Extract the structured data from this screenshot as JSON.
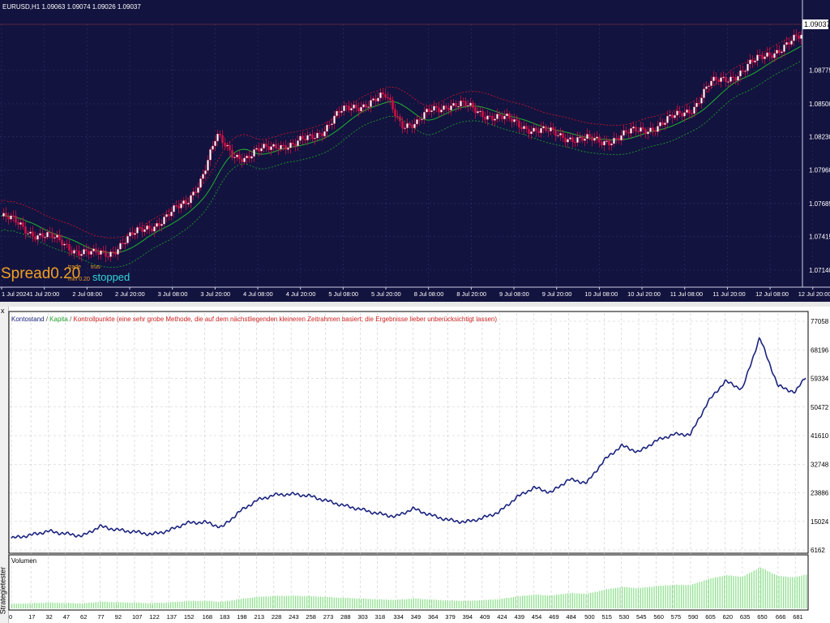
{
  "price_chart": {
    "symbol_info": "EURUSD,H1  1.09063 1.09074 1.09026 1.09037",
    "current_price": "1.09037",
    "y_axis_ticks": [
      "1.08775",
      "1.08500",
      "1.08230",
      "1.07960",
      "1.07685",
      "1.07415",
      "1.07140"
    ],
    "x_axis_ticks": [
      "1 Jul 2024",
      "1 Jul 20:00",
      "2 Jul 08:00",
      "2 Jul 20:00",
      "3 Jul 08:00",
      "3 Jul 20:00",
      "4 Jul 08:00",
      "4 Jul 20:00",
      "5 Jul 08:00",
      "5 Jul 20:00",
      "8 Jul 08:00",
      "8 Jul 20:00",
      "9 Jul 08:00",
      "9 Jul 20:00",
      "10 Jul 08:00",
      "10 Jul 20:00",
      "11 Jul 08:00",
      "11 Jul 20:00",
      "12 Jul 08:00",
      "12 Jul 20:00"
    ],
    "spread_label": "Spread0.20",
    "status_label": "stopped",
    "small_labels": [
      "trade",
      "min 0.20",
      "trus"
    ],
    "colors": {
      "background": "#13133f",
      "bull": "#ffffff",
      "bear": "#cc1144",
      "ma": "#22c02e",
      "upper_band": "#c0142a",
      "lower_band": "#1a9a2a",
      "spread": "#f0a020",
      "status": "#2fd8d8"
    }
  },
  "tester": {
    "panel_label": "Strategietester",
    "close_glyph": "x",
    "legend": {
      "balance": "Kontostand",
      "sep1": " / ",
      "equity": "Kapita",
      "sep2": " / ",
      "checkpoints": "Kontrollpunkte (eine sehr grobe Methode, die auf dem nächstliegenden kleineren Zeitrahmen basiert; die Ergebnisse lieber unberücksichtigt lassen)"
    },
    "y_axis_ticks": [
      "77058",
      "68196",
      "59334",
      "50472",
      "41610",
      "32748",
      "23886",
      "15024",
      "6162"
    ],
    "volume_label": "Volumen",
    "x_axis_ticks": [
      "0",
      "17",
      "32",
      "47",
      "62",
      "77",
      "92",
      "107",
      "122",
      "137",
      "152",
      "168",
      "183",
      "198",
      "213",
      "228",
      "243",
      "258",
      "273",
      "288",
      "303",
      "318",
      "334",
      "349",
      "364",
      "379",
      "394",
      "409",
      "424",
      "439",
      "454",
      "469",
      "484",
      "500",
      "515",
      "530",
      "545",
      "560",
      "575",
      "590",
      "605",
      "620",
      "635",
      "650",
      "666",
      "681"
    ],
    "colors": {
      "balance": "#1a237e",
      "equity": "#22a02e",
      "checkpoints": "#cc2222",
      "volume": "#90e090",
      "grid": "#c8c8c8"
    }
  },
  "chart_data": [
    {
      "type": "line",
      "title": "EURUSD,H1",
      "series": [
        {
          "name": "EURUSD",
          "values": [
            1.0758,
            1.0752,
            1.0745,
            1.0741,
            1.0736,
            1.073,
            1.0726,
            1.0728,
            1.0738,
            1.0745,
            1.0752,
            1.076,
            1.0768,
            1.079,
            1.0822,
            1.081,
            1.0806,
            1.0812,
            1.0818,
            1.0815,
            1.0822,
            1.083,
            1.0842,
            1.0848,
            1.0852,
            1.0855,
            1.0835,
            1.0833,
            1.0845,
            1.085,
            1.0848,
            1.0844,
            1.084,
            1.0836,
            1.0832,
            1.0828,
            1.0825,
            1.0823,
            1.082,
            1.0819,
            1.0823,
            1.0826,
            1.083,
            1.0834,
            1.084,
            1.0848,
            1.0865,
            1.087,
            1.0876,
            1.0884,
            1.0892,
            1.0898,
            1.0904
          ]
        }
      ],
      "ylim": [
        1.07,
        1.0915
      ]
    },
    {
      "type": "line",
      "title": "",
      "x": [
        0,
        17,
        32,
        47,
        62,
        77,
        92,
        107,
        122,
        137,
        152,
        168,
        183,
        198,
        213,
        228,
        243,
        258,
        273,
        288,
        303,
        318,
        334,
        349,
        364,
        379,
        394,
        409,
        424,
        439,
        454,
        469,
        484,
        500,
        515,
        530,
        545,
        560,
        575,
        590,
        605,
        620,
        635,
        650,
        666,
        681,
        690
      ],
      "series": [
        {
          "name": "Kontostand",
          "values": [
            9800,
            10800,
            12000,
            11200,
            10500,
            13500,
            12400,
            11800,
            11000,
            12200,
            14500,
            14800,
            13200,
            18000,
            21500,
            23200,
            23500,
            23000,
            21500,
            20000,
            18800,
            17500,
            16500,
            19000,
            17000,
            15500,
            14800,
            16000,
            18000,
            22500,
            25500,
            24000,
            28000,
            27000,
            34000,
            38500,
            36500,
            40000,
            42000,
            42000,
            52000,
            58500,
            56000,
            72000,
            57000,
            55000,
            60000
          ]
        }
      ],
      "ylim": [
        6162,
        77058
      ]
    }
  ]
}
